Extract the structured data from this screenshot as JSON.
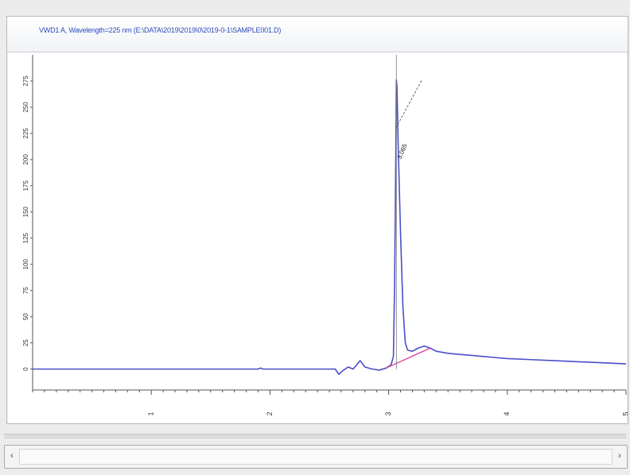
{
  "header": {
    "signal_title": "VWD1 A, Wavelength=225 nm (E:\\DATA\\2019\\2019\\0\\2019-0-1\\SAMPLE001.D)"
  },
  "colors": {
    "signal": "#4a4fc8",
    "baseline": "#e0409a",
    "header_text": "#2b4bbd",
    "axis": "#555555"
  },
  "chart_data": {
    "type": "line",
    "title": "",
    "xlabel": "",
    "ylabel": "",
    "xlim": [
      0,
      5
    ],
    "ylim": [
      -20,
      300
    ],
    "x_ticks": [
      "1",
      "2",
      "3",
      "4",
      "5"
    ],
    "y_ticks": [
      "0",
      "25",
      "50",
      "75",
      "100",
      "125",
      "150",
      "175",
      "200",
      "225",
      "250",
      "275"
    ],
    "grid": false,
    "series": [
      {
        "role": "signal",
        "points": [
          [
            0.0,
            0
          ],
          [
            0.5,
            0
          ],
          [
            1.0,
            0
          ],
          [
            1.5,
            0
          ],
          [
            1.9,
            0
          ],
          [
            1.92,
            1
          ],
          [
            1.94,
            0
          ],
          [
            2.0,
            0
          ],
          [
            2.5,
            0
          ],
          [
            2.55,
            0
          ],
          [
            2.58,
            -5
          ],
          [
            2.62,
            -1
          ],
          [
            2.66,
            2
          ],
          [
            2.7,
            0
          ],
          [
            2.76,
            8
          ],
          [
            2.8,
            2
          ],
          [
            2.86,
            0
          ],
          [
            2.92,
            -1
          ],
          [
            2.98,
            1
          ],
          [
            3.02,
            4
          ],
          [
            3.04,
            12
          ],
          [
            3.05,
            80
          ],
          [
            3.06,
            200
          ],
          [
            3.065,
            276
          ],
          [
            3.07,
            270
          ],
          [
            3.08,
            215
          ],
          [
            3.1,
            130
          ],
          [
            3.12,
            60
          ],
          [
            3.14,
            25
          ],
          [
            3.16,
            18
          ],
          [
            3.2,
            17
          ],
          [
            3.25,
            20
          ],
          [
            3.3,
            22
          ],
          [
            3.35,
            20
          ],
          [
            3.4,
            17
          ],
          [
            3.5,
            15
          ],
          [
            3.6,
            14
          ],
          [
            3.7,
            13
          ],
          [
            3.8,
            12
          ],
          [
            3.9,
            11
          ],
          [
            4.0,
            10
          ],
          [
            4.2,
            9
          ],
          [
            4.4,
            8
          ],
          [
            4.6,
            7
          ],
          [
            4.8,
            6
          ],
          [
            5.0,
            5
          ]
        ]
      },
      {
        "role": "integration-baseline",
        "points": [
          [
            2.98,
            1
          ],
          [
            3.35,
            20
          ]
        ]
      }
    ],
    "peak_label": {
      "x": 3.065,
      "text": "3.065"
    },
    "peak_tangent": {
      "points": [
        [
          3.06,
          230
        ],
        [
          3.28,
          276
        ]
      ]
    }
  }
}
